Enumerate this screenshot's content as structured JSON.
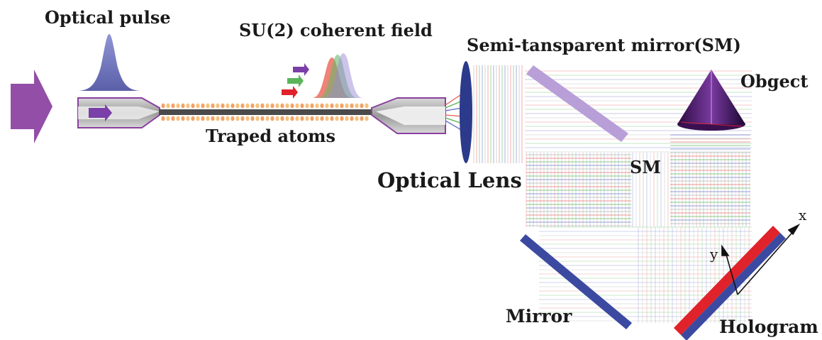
{
  "labels": {
    "optical_pulse": "Optical pulse",
    "su2_field": "SU(2) coherent field",
    "semi_transparent_mirror": "Semi-tansparent mirror(SM)",
    "object": "Obgect",
    "trapped_atoms": "Traped atoms",
    "optical_lens": "Optical Lens",
    "sm": "SM",
    "mirror": "Mirror",
    "hologram": "Hologram",
    "axis_x": "x",
    "axis_y": "y"
  },
  "colors": {
    "pulse_arrow": "#8a3fa0",
    "pulse_shape": "#6a6fb8",
    "fiber_outline": "#8a3fa0",
    "fiber_fill": "#bdbdbd",
    "lens": "#2c3a8c",
    "semi_mirror": "#b59ad6",
    "mirror": "#3b4aa0",
    "hologram_red": "#e0222a",
    "hologram_blue": "#3b4aa0",
    "cone": "#4a1a6a",
    "beam_green": "#5ab55a",
    "beam_red": "#e46a6a",
    "beam_blue": "#6a74c8",
    "beam_gray": "#b0b0b0"
  },
  "icons": {
    "input": "input-arrow-icon",
    "pulse": "gaussian-pulse-icon",
    "field_arrows": "colored-arrows-icon",
    "lens": "lens-icon",
    "object": "cone-object-icon"
  }
}
